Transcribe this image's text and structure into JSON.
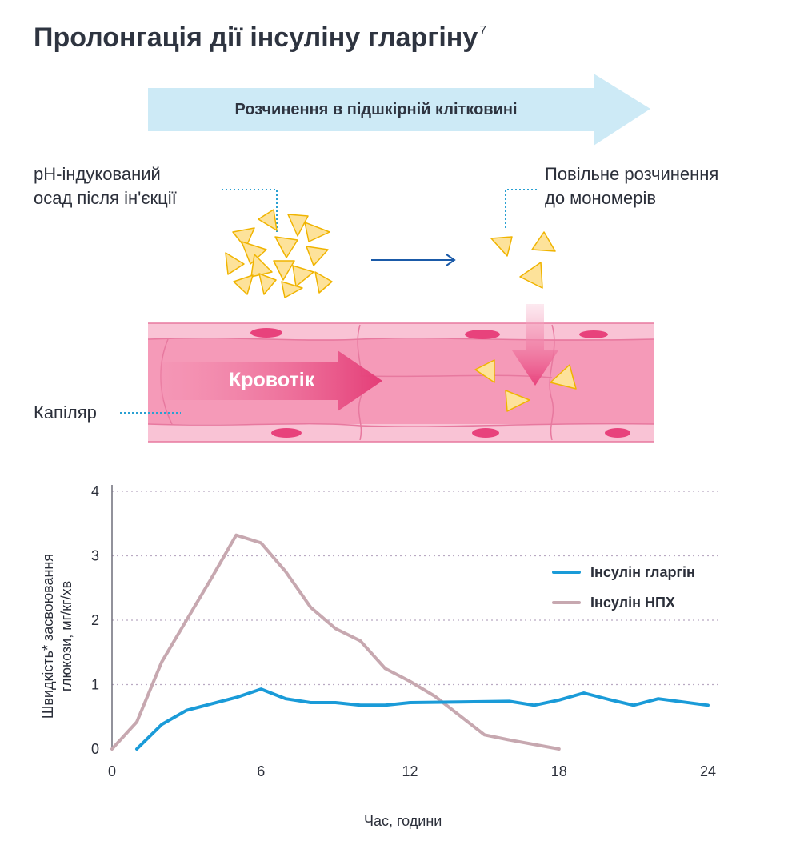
{
  "header": {
    "title": "Пролонгація дії інсуліну гларгіну",
    "title_sup": "7"
  },
  "diagram": {
    "arrow_label": "Розчинення в підшкірній клітковині",
    "precipitate_label_line1": "pH-індукований",
    "precipitate_label_line2": "осад після ін'єкції",
    "dissolution_label_line1": "Повільне розчинення",
    "dissolution_label_line2": "до мономерів",
    "bloodflow_label": "Кровотік",
    "capillary_label": "Капіляр"
  },
  "colors": {
    "arrow_fill": "#cdeaf6",
    "crystal_fill": "#fde29a",
    "crystal_stroke": "#f0b400",
    "capillary": "#f59ab8",
    "glargine": "#1a9bd8",
    "nph": "#c7a8b0",
    "dotted": "#2aa0d2"
  },
  "chart_data": {
    "type": "line",
    "xlabel": "Час, години",
    "ylabel_line1": "Швидкість* засвоювання",
    "ylabel_line2": "глюкози, мг/кг/хв",
    "xlim": [
      0,
      24
    ],
    "ylim": [
      0,
      4
    ],
    "xticks": [
      0,
      6,
      12,
      18,
      24
    ],
    "yticks": [
      0,
      1,
      2,
      3,
      4
    ],
    "grid": "horizontal dotted",
    "legend_position": "right",
    "series": [
      {
        "name": "Інсулін гларгін",
        "color": "#1a9bd8",
        "points": [
          [
            1,
            0
          ],
          [
            2,
            0.38
          ],
          [
            3,
            0.6
          ],
          [
            4,
            0.7
          ],
          [
            5,
            0.8
          ],
          [
            6,
            0.93
          ],
          [
            7,
            0.78
          ],
          [
            8,
            0.72
          ],
          [
            9,
            0.72
          ],
          [
            10,
            0.68
          ],
          [
            11,
            0.68
          ],
          [
            12,
            0.72
          ],
          [
            14,
            0.73
          ],
          [
            16,
            0.74
          ],
          [
            17,
            0.68
          ],
          [
            18,
            0.76
          ],
          [
            19,
            0.87
          ],
          [
            20,
            0.77
          ],
          [
            21,
            0.68
          ],
          [
            22,
            0.78
          ],
          [
            24,
            0.68
          ]
        ]
      },
      {
        "name": "Інсулін НПХ",
        "color": "#c7a8b0",
        "points": [
          [
            0,
            0
          ],
          [
            1,
            0.42
          ],
          [
            2,
            1.35
          ],
          [
            3,
            2.0
          ],
          [
            4,
            2.65
          ],
          [
            5,
            3.32
          ],
          [
            6,
            3.2
          ],
          [
            7,
            2.75
          ],
          [
            8,
            2.2
          ],
          [
            9,
            1.87
          ],
          [
            10,
            1.68
          ],
          [
            11,
            1.25
          ],
          [
            12,
            1.05
          ],
          [
            13,
            0.82
          ],
          [
            15,
            0.22
          ],
          [
            16,
            0.14
          ],
          [
            18,
            0
          ]
        ]
      }
    ]
  }
}
